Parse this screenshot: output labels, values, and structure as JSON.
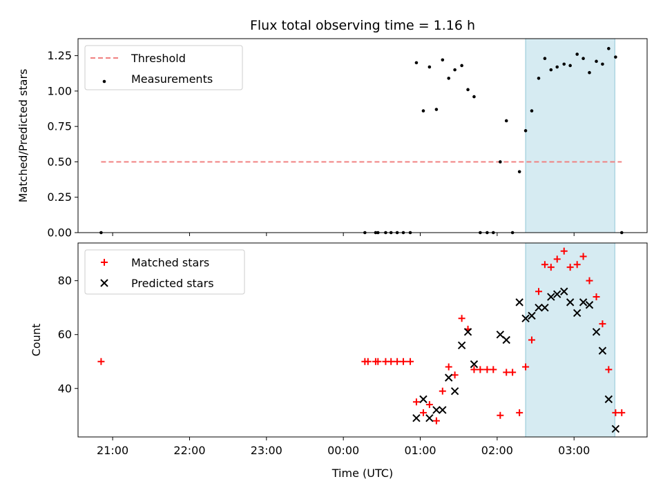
{
  "chart_data": [
    {
      "type": "scatter",
      "title": "Flux total observing time = 1.16 h",
      "ylabel": "Matched/Predicted stars",
      "xlabel": "",
      "ylim": [
        0,
        1.37
      ],
      "yticks": [
        0,
        0.25,
        0.5,
        0.75,
        1.0,
        1.25
      ],
      "ytick_labels": [
        "0.00",
        "0.25",
        "0.50",
        "0.75",
        "1.00",
        "1.25"
      ],
      "xlim_hours": [
        20.55,
        27.95
      ],
      "shaded_region_hours": [
        26.37,
        27.53
      ],
      "legend": {
        "placement": "top-left",
        "entries": [
          "Threshold",
          "Measurements"
        ]
      },
      "threshold": {
        "name": "Threshold",
        "value": 0.5,
        "x_start_hours": 20.85,
        "x_end_hours": 27.62,
        "color": "#f08080"
      },
      "series": [
        {
          "name": "Measurements",
          "color": "#000000",
          "x_hours": [
            20.85,
            24.28,
            24.42,
            24.45,
            24.55,
            24.62,
            24.7,
            24.78,
            24.87,
            24.95,
            25.04,
            25.12,
            25.21,
            25.29,
            25.37,
            25.45,
            25.54,
            25.62,
            25.7,
            25.78,
            25.87,
            25.95,
            26.04,
            26.12,
            26.2,
            26.29,
            26.37,
            26.45,
            26.54,
            26.62,
            26.7,
            26.78,
            26.87,
            26.95,
            27.04,
            27.12,
            27.2,
            27.29,
            27.37,
            27.45,
            27.54,
            27.62
          ],
          "y": [
            0.0,
            0.0,
            0.0,
            0.0,
            0.0,
            0.0,
            0.0,
            0.0,
            0.0,
            1.2,
            0.86,
            1.17,
            0.87,
            1.22,
            1.09,
            1.15,
            1.18,
            1.01,
            0.96,
            0.0,
            0.0,
            0.0,
            0.5,
            0.79,
            0.0,
            0.43,
            0.72,
            0.86,
            1.09,
            1.23,
            1.15,
            1.17,
            1.19,
            1.18,
            1.26,
            1.23,
            1.13,
            1.21,
            1.19,
            1.3,
            1.24,
            0.0
          ]
        }
      ]
    },
    {
      "type": "scatter",
      "title": "",
      "ylabel": "Count",
      "xlabel": "Time (UTC)",
      "ylim": [
        22,
        94
      ],
      "yticks": [
        40,
        60,
        80
      ],
      "ytick_labels": [
        "40",
        "60",
        "80"
      ],
      "xlim_hours": [
        20.55,
        27.95
      ],
      "xticks_hours": [
        21,
        22,
        23,
        24,
        25,
        26,
        27
      ],
      "xtick_labels": [
        "21:00",
        "22:00",
        "23:00",
        "00:00",
        "01:00",
        "02:00",
        "03:00"
      ],
      "shaded_region_hours": [
        26.37,
        27.53
      ],
      "legend": {
        "placement": "top-left",
        "entries": [
          "Matched stars",
          "Predicted stars"
        ]
      },
      "series": [
        {
          "name": "Matched stars",
          "marker": "plus",
          "color": "#ff0000",
          "x_hours": [
            20.85,
            24.28,
            24.32,
            24.42,
            24.45,
            24.55,
            24.62,
            24.7,
            24.78,
            24.87,
            24.95,
            25.04,
            25.12,
            25.21,
            25.29,
            25.37,
            25.45,
            25.54,
            25.62,
            25.7,
            25.78,
            25.87,
            25.95,
            26.04,
            26.12,
            26.2,
            26.29,
            26.37,
            26.45,
            26.54,
            26.62,
            26.7,
            26.78,
            26.87,
            26.95,
            27.04,
            27.12,
            27.2,
            27.29,
            27.37,
            27.45,
            27.54,
            27.62
          ],
          "y": [
            50,
            50,
            50,
            50,
            50,
            50,
            50,
            50,
            50,
            50,
            35,
            31,
            34,
            28,
            39,
            48,
            45,
            66,
            62,
            47,
            47,
            47,
            47,
            30,
            46,
            46,
            31,
            48,
            58,
            76,
            86,
            85,
            88,
            91,
            85,
            86,
            89,
            80,
            74,
            64,
            47,
            31,
            31
          ]
        },
        {
          "name": "Predicted stars",
          "marker": "x",
          "color": "#000000",
          "x_hours": [
            24.95,
            25.04,
            25.12,
            25.21,
            25.29,
            25.37,
            25.45,
            25.54,
            25.62,
            25.7,
            26.04,
            26.12,
            26.29,
            26.37,
            26.45,
            26.54,
            26.62,
            26.7,
            26.78,
            26.87,
            26.95,
            27.04,
            27.12,
            27.2,
            27.29,
            27.37,
            27.45,
            27.54
          ],
          "y": [
            29,
            36,
            29,
            32,
            32,
            44,
            39,
            56,
            61,
            49,
            60,
            58,
            72,
            66,
            67,
            70,
            70,
            74,
            75,
            76,
            72,
            68,
            72,
            71,
            61,
            54,
            36,
            25
          ]
        }
      ]
    }
  ]
}
